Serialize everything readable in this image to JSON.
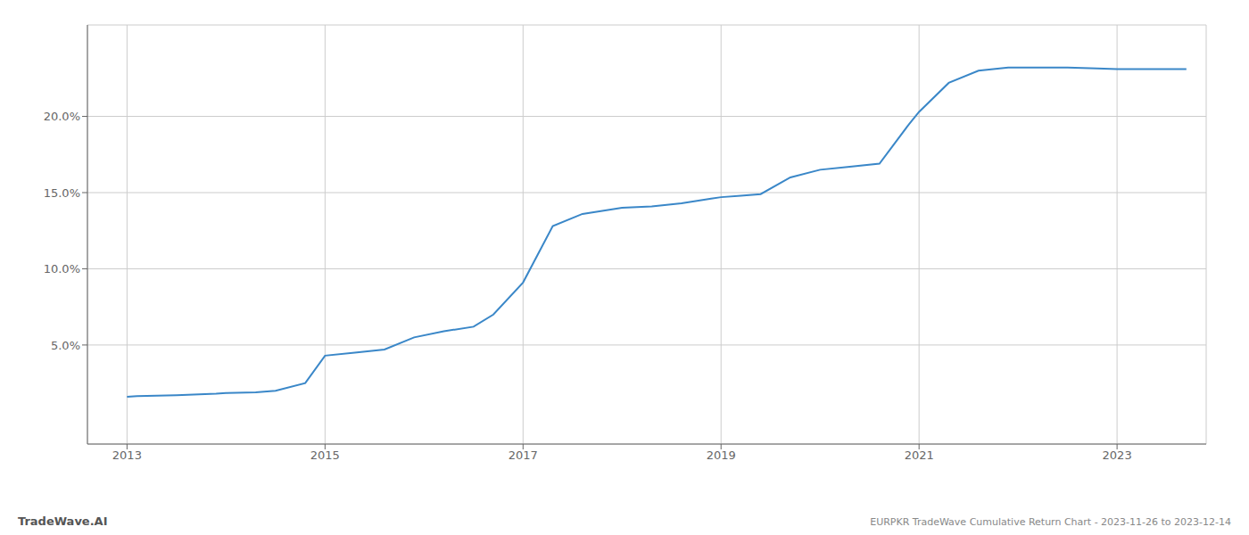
{
  "chart_data": {
    "type": "line",
    "title": "EURPKR TradeWave Cumulative Return Chart - 2023-11-26 to 2023-12-14",
    "annotations": [
      "TradeWave.AI"
    ],
    "x": [
      2013.0,
      2013.1,
      2013.5,
      2013.9,
      2014.0,
      2014.3,
      2014.5,
      2014.8,
      2015.0,
      2015.3,
      2015.6,
      2015.9,
      2016.2,
      2016.5,
      2016.7,
      2017.0,
      2017.3,
      2017.6,
      2017.8,
      2018.0,
      2018.3,
      2018.6,
      2018.9,
      2019.0,
      2019.2,
      2019.4,
      2019.7,
      2020.0,
      2020.3,
      2020.6,
      2020.9,
      2021.0,
      2021.3,
      2021.6,
      2021.9,
      2022.0,
      2022.2,
      2022.5,
      2022.8,
      2023.0,
      2023.3,
      2023.7
    ],
    "values": [
      1.6,
      1.65,
      1.7,
      1.8,
      1.85,
      1.9,
      2.0,
      2.5,
      4.3,
      4.5,
      4.7,
      5.5,
      5.9,
      6.2,
      7.0,
      9.1,
      12.8,
      13.6,
      13.8,
      14.0,
      14.1,
      14.3,
      14.6,
      14.7,
      14.8,
      14.9,
      16.0,
      16.5,
      16.7,
      16.9,
      19.5,
      20.3,
      22.2,
      23.0,
      23.2,
      23.2,
      23.2,
      23.2,
      23.15,
      23.1,
      23.1,
      23.1
    ],
    "color": "#3a87c8",
    "xlim": [
      2012.6,
      2023.9
    ],
    "xticks": [
      2013,
      2015,
      2017,
      2019,
      2021,
      2023
    ],
    "ylim": [
      -1.5,
      26.0
    ],
    "yticks": [
      {
        "value": 5.0,
        "label": "5.0%"
      },
      {
        "value": 10.0,
        "label": "10.0%"
      },
      {
        "value": 15.0,
        "label": "15.0%"
      },
      {
        "value": 20.0,
        "label": "20.0%"
      }
    ],
    "grid": true
  }
}
